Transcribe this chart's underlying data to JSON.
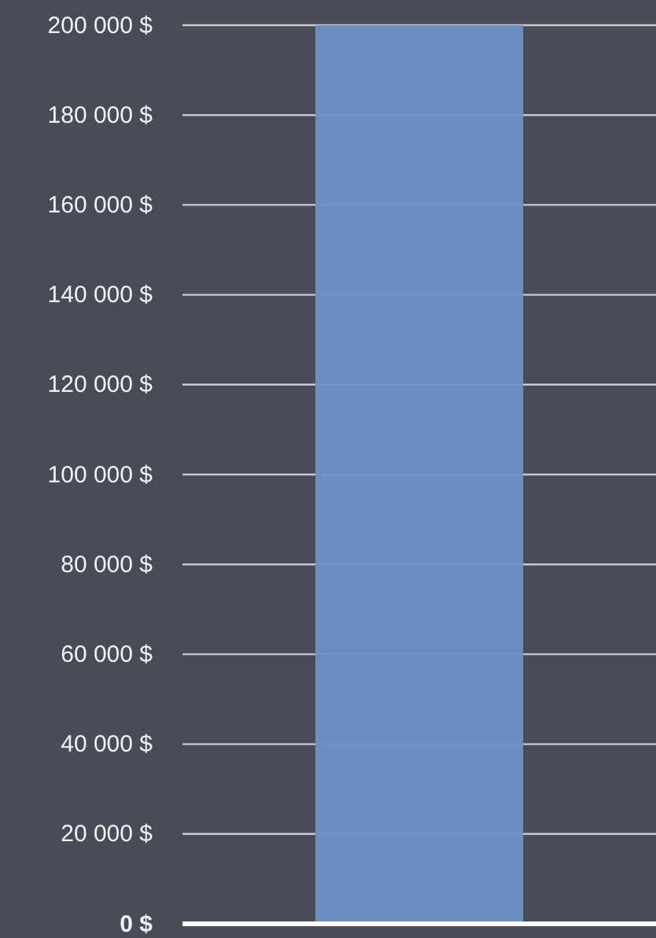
{
  "chart_data": {
    "type": "bar",
    "categories": [
      null
    ],
    "values": [
      200000
    ],
    "color": "#6b91c4",
    "ylim": [
      0,
      200000
    ],
    "yticks": [
      {
        "value": 0,
        "label": "0 $"
      },
      {
        "value": 20000,
        "label": "20 000 $"
      },
      {
        "value": 40000,
        "label": "40 000 $"
      },
      {
        "value": 60000,
        "label": "60 000 $"
      },
      {
        "value": 80000,
        "label": "80 000 $"
      },
      {
        "value": 100000,
        "label": "100 000 $"
      },
      {
        "value": 120000,
        "label": "120 000 $"
      },
      {
        "value": 140000,
        "label": "140 000 $"
      },
      {
        "value": 160000,
        "label": "160 000 $"
      },
      {
        "value": 180000,
        "label": "180 000 $"
      },
      {
        "value": 200000,
        "label": "200 000 $"
      }
    ],
    "grid": "y",
    "tick_labels": "y"
  }
}
